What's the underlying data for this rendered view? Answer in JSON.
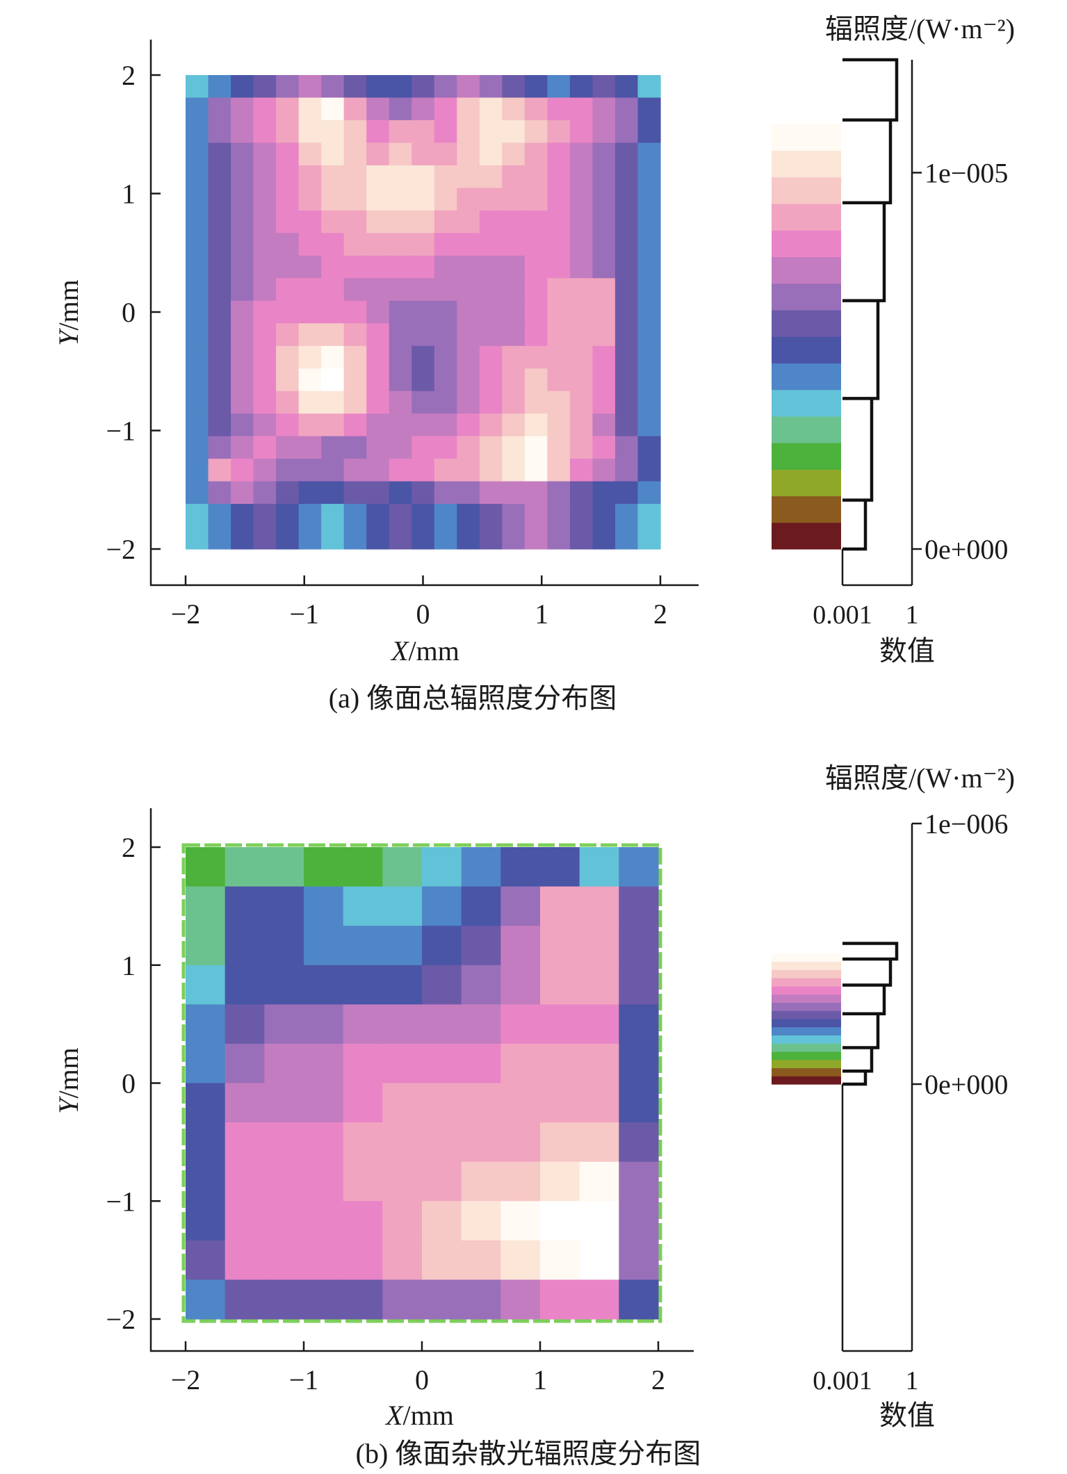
{
  "colormap": [
    "#6b1a1f",
    "#8a5a1e",
    "#8fa82a",
    "#4cb23c",
    "#6cc28e",
    "#62c2d8",
    "#4f86c7",
    "#4a55a6",
    "#6b5aa8",
    "#9a6fb9",
    "#c47cc0",
    "#e985c6",
    "#f0a4c0",
    "#f6c8c6",
    "#fbe6d8",
    "#fffaf3",
    "#ffffff"
  ],
  "panels": [
    {
      "id": "a",
      "caption": "(a) 像面总辐照度分布图",
      "xlabel_italic": "X",
      "xlabel_unit": "/mm",
      "ylabel_italic": "Y",
      "ylabel_unit": "/mm",
      "colorbar_title": "辐照度/(W·m⁻²)",
      "colorbar_ticks": [
        {
          "label": "1e−005",
          "value": 1e-05
        },
        {
          "label": "0e+000",
          "value": 0
        }
      ],
      "colorbar_range": [
        0,
        1.3e-05
      ],
      "hist_xlabel": "数值",
      "hist_ticks": [
        "0.001",
        "1"
      ],
      "chart_data": {
        "type": "heatmap",
        "x_ticks": [
          "−2",
          "−1",
          "0",
          "1",
          "2"
        ],
        "y_ticks": [
          "2",
          "1",
          "0",
          "−1",
          "−2"
        ],
        "xlim": [
          -2,
          2
        ],
        "ylim": [
          -2,
          2
        ],
        "cell_size_mm": 0.2,
        "level_range": [
          0,
          16
        ],
        "levels": [
          [
            5,
            6,
            7,
            8,
            9,
            10,
            9,
            8,
            7,
            7,
            8,
            9,
            10,
            9,
            8,
            7,
            6,
            7,
            8,
            7,
            5
          ],
          [
            6,
            9,
            10,
            11,
            12,
            14,
            15,
            12,
            10,
            9,
            10,
            11,
            13,
            14,
            13,
            12,
            11,
            11,
            10,
            9,
            7
          ],
          [
            6,
            9,
            10,
            11,
            12,
            14,
            14,
            13,
            11,
            12,
            12,
            11,
            13,
            14,
            14,
            13,
            12,
            11,
            10,
            9,
            7
          ],
          [
            6,
            8,
            9,
            10,
            11,
            13,
            14,
            13,
            12,
            13,
            12,
            12,
            13,
            14,
            13,
            12,
            11,
            10,
            9,
            8,
            6
          ],
          [
            6,
            8,
            9,
            10,
            11,
            12,
            13,
            13,
            14,
            14,
            14,
            13,
            13,
            13,
            12,
            12,
            11,
            10,
            9,
            8,
            6
          ],
          [
            6,
            8,
            9,
            10,
            11,
            12,
            13,
            13,
            14,
            14,
            14,
            13,
            12,
            12,
            12,
            12,
            11,
            10,
            9,
            8,
            6
          ],
          [
            6,
            8,
            9,
            10,
            11,
            11,
            12,
            12,
            13,
            13,
            13,
            12,
            12,
            11,
            11,
            11,
            11,
            10,
            9,
            8,
            6
          ],
          [
            6,
            8,
            9,
            10,
            10,
            11,
            11,
            12,
            12,
            12,
            12,
            11,
            11,
            11,
            11,
            11,
            11,
            10,
            9,
            8,
            6
          ],
          [
            6,
            8,
            9,
            10,
            10,
            10,
            11,
            11,
            11,
            11,
            11,
            10,
            10,
            10,
            10,
            11,
            11,
            10,
            9,
            8,
            6
          ],
          [
            6,
            8,
            9,
            10,
            11,
            11,
            11,
            10,
            10,
            10,
            10,
            10,
            10,
            10,
            10,
            11,
            12,
            12,
            12,
            8,
            6
          ],
          [
            6,
            8,
            10,
            11,
            11,
            11,
            11,
            11,
            10,
            9,
            9,
            9,
            10,
            10,
            10,
            11,
            12,
            12,
            12,
            8,
            6
          ],
          [
            6,
            8,
            10,
            11,
            12,
            13,
            13,
            12,
            11,
            9,
            9,
            9,
            10,
            10,
            10,
            11,
            12,
            12,
            12,
            8,
            6
          ],
          [
            6,
            8,
            10,
            11,
            13,
            14,
            15,
            13,
            11,
            9,
            8,
            9,
            10,
            11,
            12,
            12,
            12,
            12,
            11,
            8,
            6
          ],
          [
            6,
            8,
            10,
            11,
            13,
            15,
            16,
            13,
            11,
            9,
            8,
            9,
            10,
            11,
            12,
            13,
            12,
            12,
            11,
            8,
            6
          ],
          [
            6,
            8,
            10,
            11,
            12,
            14,
            14,
            13,
            11,
            10,
            9,
            9,
            10,
            11,
            12,
            13,
            13,
            12,
            11,
            8,
            6
          ],
          [
            6,
            8,
            9,
            10,
            11,
            12,
            12,
            11,
            10,
            10,
            10,
            10,
            11,
            12,
            13,
            14,
            13,
            12,
            10,
            8,
            6
          ],
          [
            6,
            9,
            10,
            11,
            10,
            10,
            9,
            9,
            10,
            10,
            11,
            11,
            12,
            13,
            14,
            15,
            13,
            12,
            11,
            9,
            7
          ],
          [
            6,
            12,
            11,
            10,
            9,
            9,
            9,
            10,
            10,
            11,
            11,
            12,
            12,
            13,
            14,
            15,
            13,
            11,
            10,
            9,
            7
          ],
          [
            6,
            9,
            10,
            9,
            8,
            7,
            7,
            8,
            8,
            7,
            8,
            9,
            9,
            10,
            10,
            10,
            9,
            8,
            7,
            7,
            6
          ],
          [
            5,
            6,
            7,
            8,
            7,
            6,
            5,
            6,
            7,
            8,
            7,
            6,
            7,
            8,
            9,
            10,
            9,
            8,
            7,
            6,
            5
          ],
          [
            5,
            6,
            7,
            8,
            7,
            6,
            5,
            6,
            7,
            8,
            7,
            6,
            7,
            8,
            9,
            10,
            9,
            8,
            7,
            6,
            5
          ]
        ],
        "histogram": {
          "x_scale": "log",
          "bin_edges": [
            1.3e-05,
            1.14e-05,
            9.2e-06,
            6.6e-06,
            4e-06,
            1.3e-06,
            0
          ]
        }
      }
    },
    {
      "id": "b",
      "caption": "(b) 像面杂散光辐照度分布图",
      "xlabel_italic": "X",
      "xlabel_unit": "/mm",
      "ylabel_italic": "Y",
      "ylabel_unit": "/mm",
      "colorbar_title": "辐照度/(W·m⁻²)",
      "colorbar_ticks": [
        {
          "label": "1e−006",
          "value": 1e-06
        },
        {
          "label": "0e+000",
          "value": 0
        }
      ],
      "colorbar_range": [
        0,
        1e-06
      ],
      "hist_xlabel": "数值",
      "hist_ticks": [
        "0.001",
        "1"
      ],
      "chart_data": {
        "type": "heatmap",
        "x_ticks": [
          "−2",
          "−1",
          "0",
          "1",
          "2"
        ],
        "y_ticks": [
          "2",
          "1",
          "0",
          "−1",
          "−2"
        ],
        "xlim": [
          -2,
          2
        ],
        "ylim": [
          -2,
          2
        ],
        "cell_size_mm": 0.333,
        "level_range": [
          0,
          16
        ],
        "levels": [
          [
            3,
            4,
            4,
            3,
            3,
            4,
            5,
            6,
            7,
            7,
            5,
            6
          ],
          [
            4,
            7,
            7,
            6,
            5,
            5,
            6,
            7,
            9,
            12,
            12,
            8
          ],
          [
            4,
            7,
            7,
            6,
            6,
            6,
            7,
            8,
            10,
            12,
            12,
            8
          ],
          [
            5,
            7,
            7,
            7,
            7,
            7,
            8,
            9,
            10,
            12,
            12,
            8
          ],
          [
            6,
            8,
            9,
            9,
            10,
            10,
            10,
            10,
            11,
            11,
            11,
            7
          ],
          [
            6,
            9,
            10,
            10,
            11,
            11,
            11,
            11,
            12,
            12,
            12,
            7
          ],
          [
            7,
            10,
            10,
            10,
            11,
            12,
            12,
            12,
            12,
            12,
            12,
            7
          ],
          [
            7,
            11,
            11,
            11,
            12,
            12,
            12,
            12,
            12,
            13,
            13,
            8
          ],
          [
            7,
            11,
            11,
            11,
            12,
            12,
            12,
            13,
            13,
            14,
            15,
            9
          ],
          [
            7,
            11,
            11,
            11,
            11,
            12,
            13,
            14,
            15,
            16,
            16,
            9
          ],
          [
            8,
            11,
            11,
            11,
            11,
            12,
            13,
            13,
            14,
            15,
            16,
            9
          ],
          [
            6,
            8,
            8,
            8,
            8,
            9,
            9,
            9,
            10,
            11,
            11,
            7
          ]
        ],
        "histogram": {
          "x_scale": "log",
          "bin_edges": [
            5.4e-07,
            4.8e-07,
            3.8e-07,
            2.7e-07,
            1.4e-07,
            5e-08,
            0
          ]
        }
      }
    }
  ]
}
